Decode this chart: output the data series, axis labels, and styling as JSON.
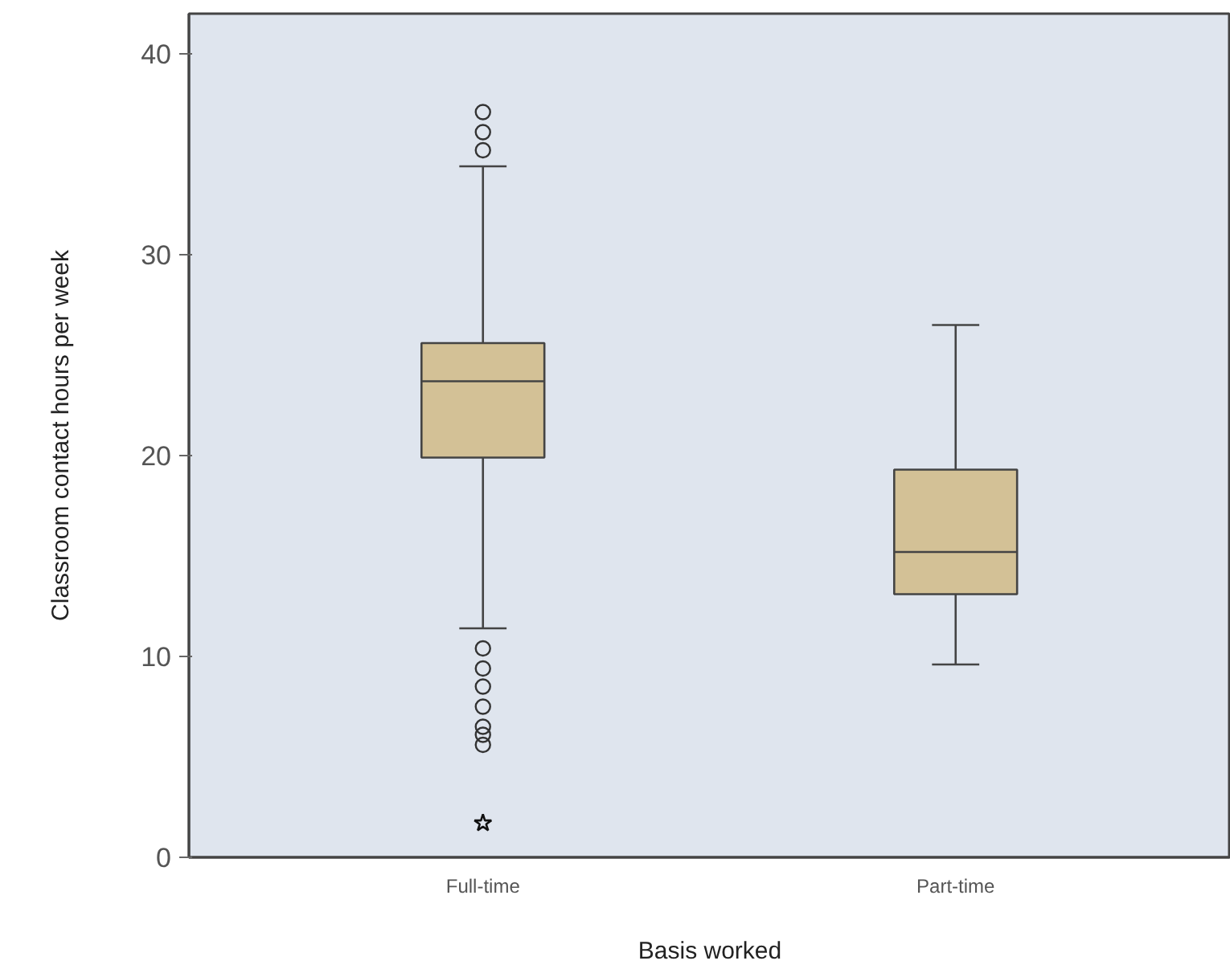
{
  "chart_data": {
    "type": "box",
    "xlabel": "Basis worked",
    "ylabel": "Classroom contact hours per week",
    "categories": [
      "Full-time",
      "Part-time"
    ],
    "boxes": [
      {
        "low": 11.4,
        "q1": 19.9,
        "median": 23.7,
        "q3": 25.6,
        "high": 34.4,
        "outliers": [
          37.1,
          36.1,
          35.2,
          10.4,
          9.4,
          8.5,
          7.5,
          6.5,
          6.1,
          5.6
        ]
      },
      {
        "low": 9.6,
        "q1": 13.1,
        "median": 15.2,
        "q3": 19.3,
        "high": 26.5
      }
    ],
    "series": [
      {
        "type": "scatter",
        "x": [
          "Full-time"
        ],
        "values": [
          1.7
        ],
        "marker": "star",
        "color": "#111111"
      }
    ],
    "color": "#d3c196",
    "ylim": [
      0,
      42
    ],
    "yticks": [
      0,
      10,
      20,
      30,
      40
    ],
    "grid": false
  }
}
